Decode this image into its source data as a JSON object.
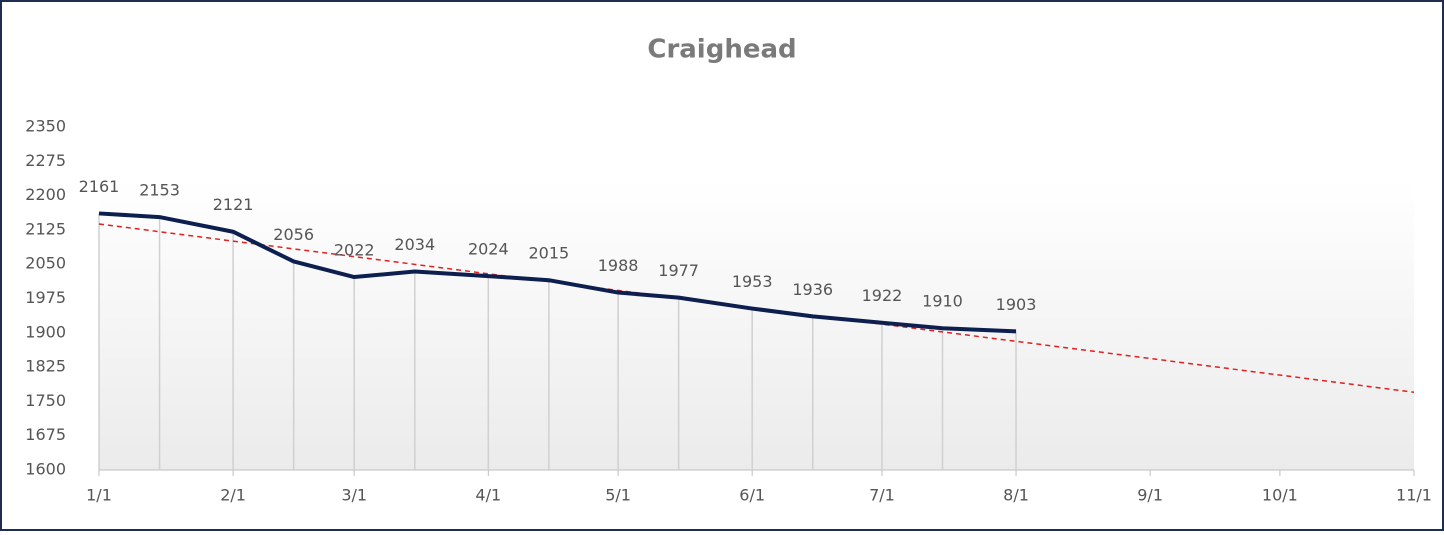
{
  "chart_data": {
    "type": "line",
    "title": "Craighead",
    "x": [
      0,
      14,
      31,
      45,
      59,
      73,
      90,
      104,
      120,
      134,
      151,
      165,
      181,
      195,
      212
    ],
    "series": [
      {
        "color": "#0d1f4f",
        "values": [
          2161,
          2153,
          2121,
          2056,
          2022,
          2034,
          2024,
          2015,
          1988,
          1977,
          1953,
          1936,
          1922,
          1910,
          1903
        ]
      }
    ],
    "trendline": {
      "x": [
        0,
        304
      ],
      "values": [
        2138,
        1770
      ],
      "color": "#e02020",
      "dashed": true
    },
    "xlim": [
      0,
      304
    ],
    "xticks": [
      {
        "value": 0,
        "label": "1/1"
      },
      {
        "value": 31,
        "label": "2/1"
      },
      {
        "value": 59,
        "label": "3/1"
      },
      {
        "value": 90,
        "label": "4/1"
      },
      {
        "value": 120,
        "label": "5/1"
      },
      {
        "value": 151,
        "label": "6/1"
      },
      {
        "value": 181,
        "label": "7/1"
      },
      {
        "value": 212,
        "label": "8/1"
      },
      {
        "value": 243,
        "label": "9/1"
      },
      {
        "value": 273,
        "label": "10/1"
      },
      {
        "value": 304,
        "label": "11/1"
      }
    ],
    "ylim": [
      1600,
      2350
    ],
    "yticks": [
      1600,
      1675,
      1750,
      1825,
      1900,
      1975,
      2050,
      2125,
      2200,
      2275,
      2350
    ],
    "drop_lines": true,
    "data_labels": true
  }
}
